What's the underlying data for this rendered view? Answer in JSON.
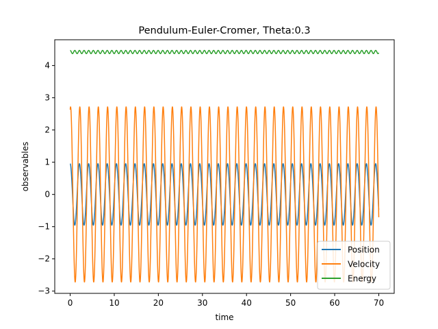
{
  "chart_data": {
    "type": "line",
    "title": "Pendulum-Euler-Cromer, Theta:0.3",
    "xlabel": "time",
    "ylabel": "observables",
    "xlim": [
      -3.5,
      73.5
    ],
    "ylim": [
      -3.07,
      4.8
    ],
    "xticks": [
      0,
      10,
      20,
      30,
      40,
      50,
      60,
      70
    ],
    "yticks": [
      -3,
      -2,
      -1,
      0,
      1,
      2,
      3,
      4
    ],
    "grid": false,
    "legend_position": "lower right",
    "t_max": 70,
    "period": 2.1,
    "series": [
      {
        "name": "Position",
        "color": "#1f77b4",
        "amplitude": 0.955,
        "phase_shift": 0.0,
        "offset": 0.0,
        "ripple": 0.0
      },
      {
        "name": "Velocity",
        "color": "#ff7f0e",
        "amplitude": 2.72,
        "phase_shift": -0.26,
        "offset": 0.0,
        "ripple": 0.0
      },
      {
        "name": "Energy",
        "color": "#2ca02c",
        "amplitude": 0.0,
        "phase_shift": 0.0,
        "offset": 4.42,
        "ripple": 0.05
      }
    ]
  }
}
